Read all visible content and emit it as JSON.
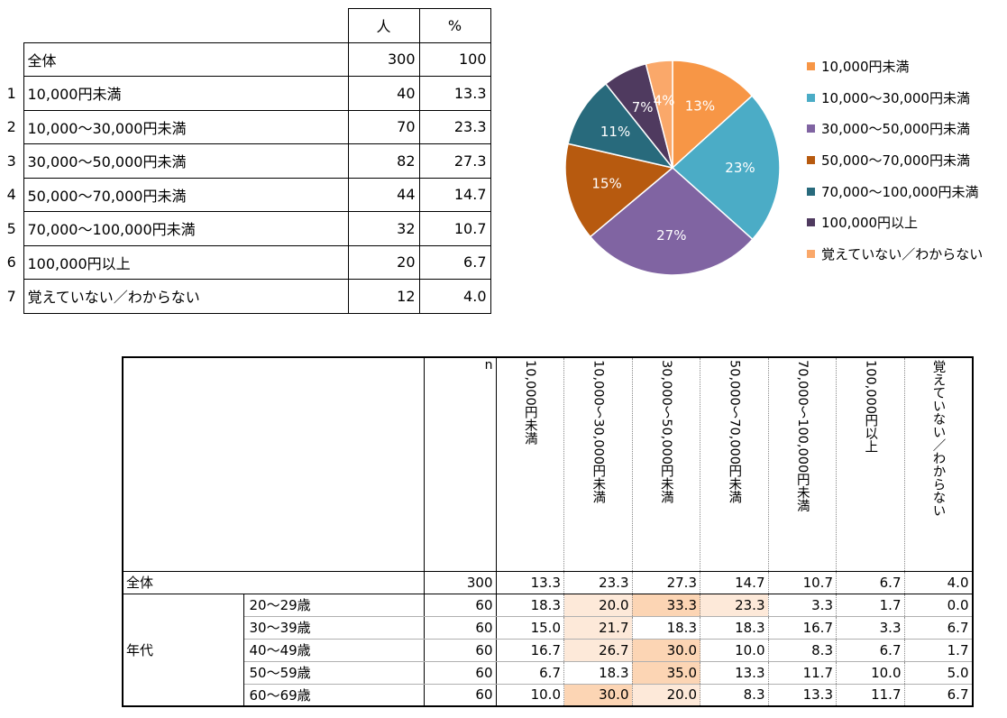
{
  "summary_table": {
    "headers": {
      "count": "人",
      "percent": "%"
    },
    "total": {
      "label": "全体",
      "count": "300",
      "percent": "100"
    },
    "rows": [
      {
        "index": "1",
        "label": "10,000円未満",
        "count": "40",
        "percent": "13.3"
      },
      {
        "index": "2",
        "label": "10,000～30,000円未満",
        "count": "70",
        "percent": "23.3"
      },
      {
        "index": "3",
        "label": "30,000～50,000円未満",
        "count": "82",
        "percent": "27.3"
      },
      {
        "index": "4",
        "label": "50,000～70,000円未満",
        "count": "44",
        "percent": "14.7"
      },
      {
        "index": "5",
        "label": "70,000～100,000円未満",
        "count": "32",
        "percent": "10.7"
      },
      {
        "index": "6",
        "label": "100,000円以上",
        "count": "20",
        "percent": "6.7"
      },
      {
        "index": "7",
        "label": "覚えていない／わからない",
        "count": "12",
        "percent": "4.0"
      }
    ]
  },
  "chart_data": {
    "type": "pie",
    "title": "",
    "legend_position": "right",
    "categories": [
      "10,000円未満",
      "10,000～30,000円未満",
      "30,000～50,000円未満",
      "50,000～70,000円未満",
      "70,000～100,000円未満",
      "100,000円以上",
      "覚えていない／わからない"
    ],
    "values": [
      13.3,
      23.3,
      27.3,
      14.7,
      10.7,
      6.7,
      4.0
    ],
    "labels": [
      "13%",
      "23%",
      "27%",
      "15%",
      "11%",
      "7%",
      "4%"
    ],
    "colors": [
      "#F79646",
      "#4BACC6",
      "#8064A2",
      "#B75A0F",
      "#286A7C",
      "#4F3A5F",
      "#FAA86A"
    ]
  },
  "crosstab": {
    "n_header": "n",
    "columns": [
      "10,000円未満",
      "10,000～30,000円未満",
      "30,000～50,000円未満",
      "50,000～70,000円未満",
      "70,000～100,000円未満",
      "100,000円以上",
      "覚えていない／わからない"
    ],
    "total": {
      "label": "全体",
      "n": "300",
      "values": [
        "13.3",
        "23.3",
        "27.3",
        "14.7",
        "10.7",
        "6.7",
        "4.0"
      ]
    },
    "group_label": "年代",
    "rows": [
      {
        "label": "20～29歳",
        "n": "60",
        "values": [
          "18.3",
          "20.0",
          "33.3",
          "23.3",
          "3.3",
          "1.7",
          "0.0"
        ]
      },
      {
        "label": "30～39歳",
        "n": "60",
        "values": [
          "15.0",
          "21.7",
          "18.3",
          "18.3",
          "16.7",
          "3.3",
          "6.7"
        ]
      },
      {
        "label": "40～49歳",
        "n": "60",
        "values": [
          "16.7",
          "26.7",
          "30.0",
          "10.0",
          "8.3",
          "6.7",
          "1.7"
        ]
      },
      {
        "label": "50～59歳",
        "n": "60",
        "values": [
          "6.7",
          "18.3",
          "35.0",
          "13.3",
          "11.7",
          "10.0",
          "5.0"
        ]
      },
      {
        "label": "60～69歳",
        "n": "60",
        "values": [
          "10.0",
          "30.0",
          "20.0",
          "8.3",
          "13.3",
          "11.7",
          "6.7"
        ]
      }
    ],
    "highlight_colors": {
      "strong": "#FCD5B4",
      "light": "#FDE9D9"
    }
  }
}
